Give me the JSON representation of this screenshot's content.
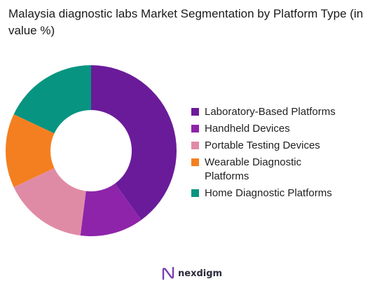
{
  "chart_data": {
    "type": "pie",
    "title": "Malaysia diagnostic labs Market Segmentation by Platform Type (in value %)",
    "donut": true,
    "categories": [
      "Laboratory-Based Platforms",
      "Handheld Devices",
      "Portable Testing Devices",
      "Wearable Diagnostic Platforms",
      "Home Diagnostic Platforms"
    ],
    "values": [
      40,
      12,
      16,
      14,
      18
    ],
    "colors": [
      "#6a1b9a",
      "#8e24aa",
      "#e08ba6",
      "#f47f20",
      "#079481"
    ],
    "legend_position": "right"
  },
  "brand": {
    "name": "nexdigm",
    "icon": "nexdigm-logo-icon",
    "color": "#2b2b3c"
  }
}
